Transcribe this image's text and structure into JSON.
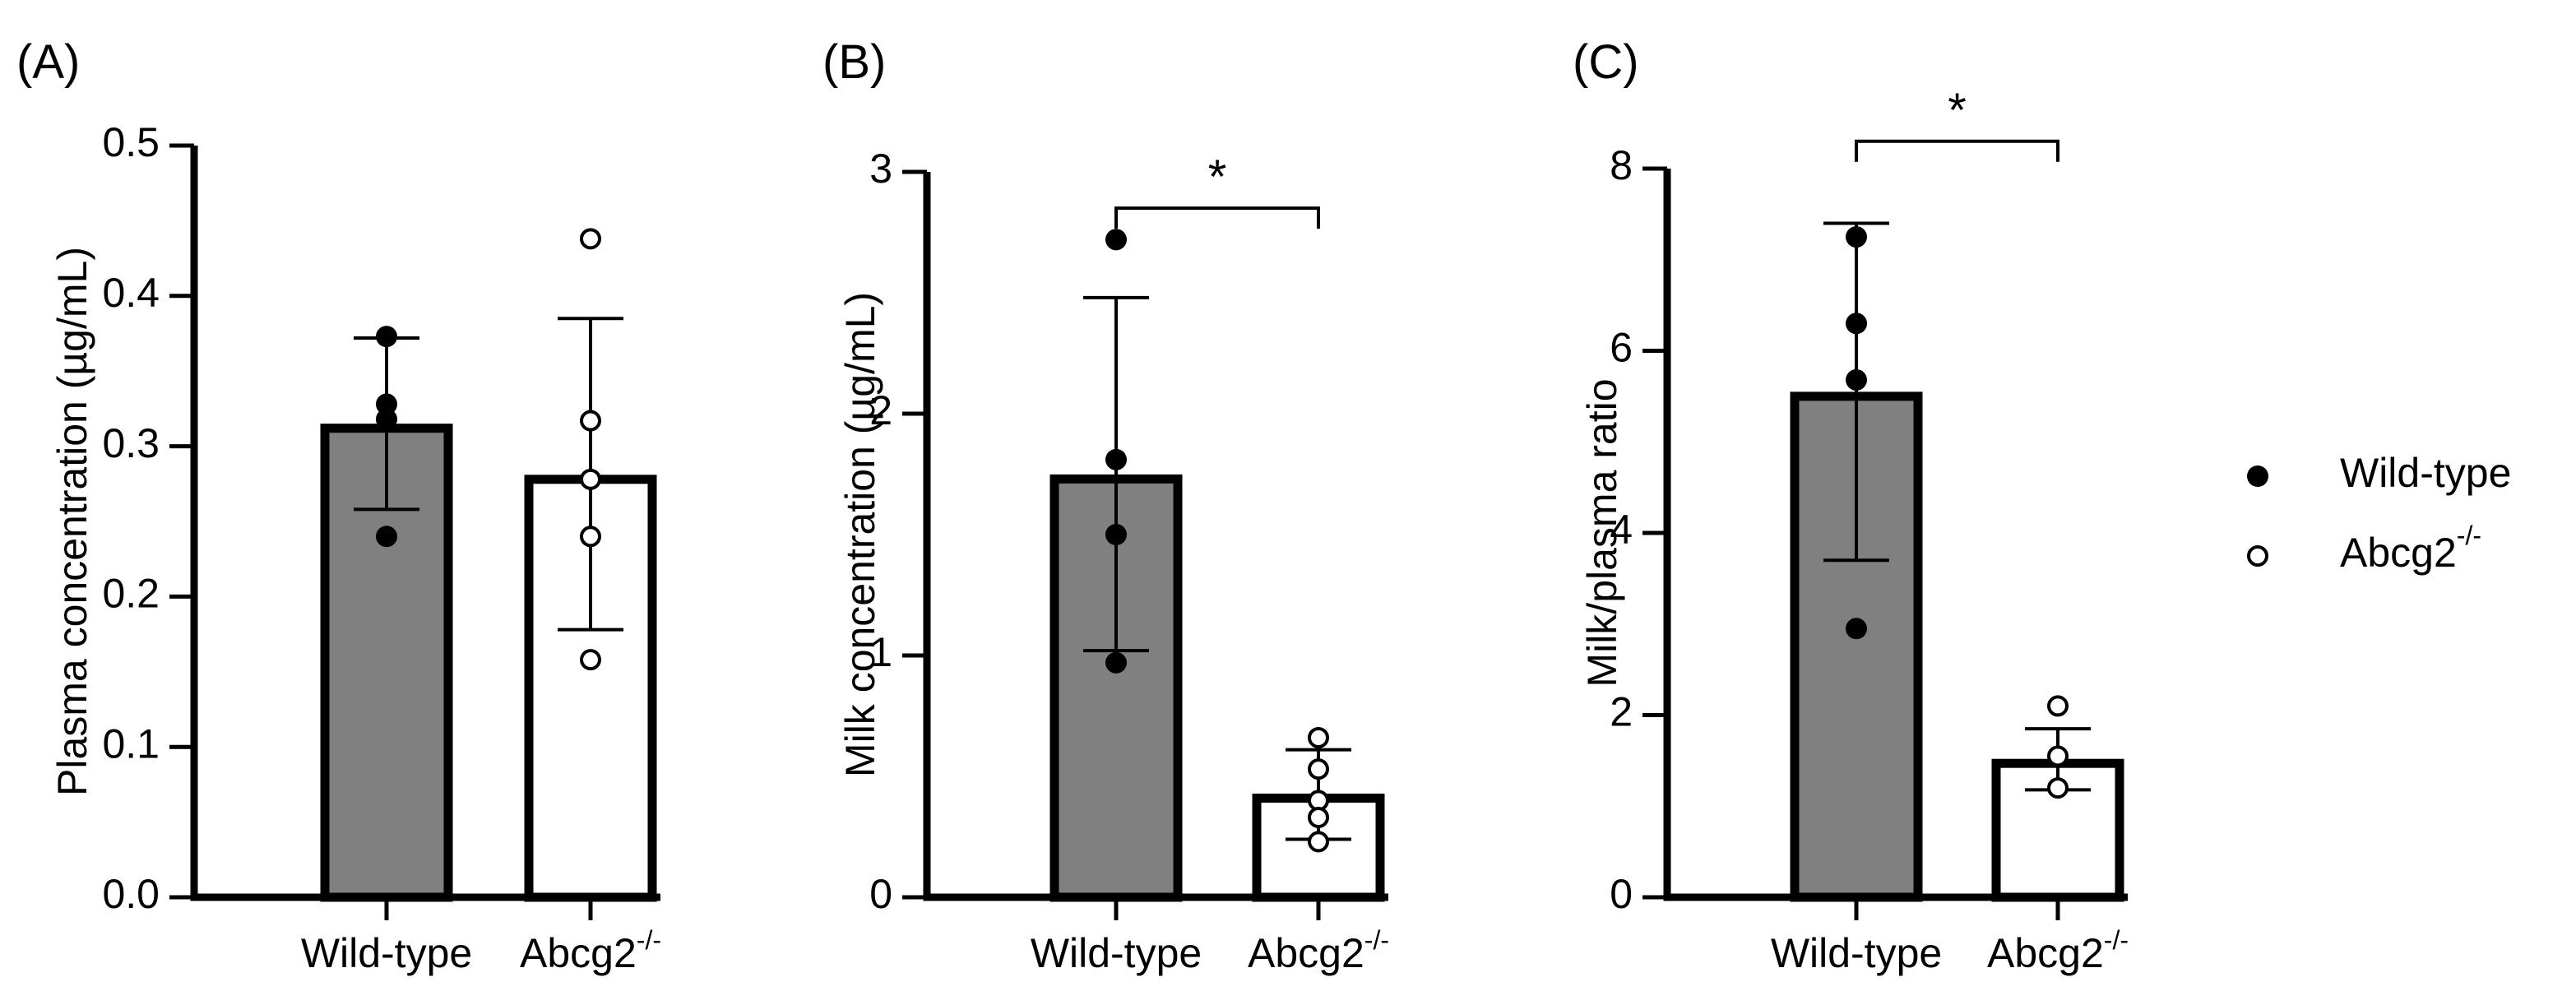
{
  "legend": {
    "position": "right",
    "items": [
      {
        "label": "Wild-type",
        "marker": "filled-circle"
      },
      {
        "label": "Abcg2",
        "sup": "-/-",
        "marker": "open-circle"
      }
    ]
  },
  "colors": {
    "wild_type_bar": "#808080",
    "abcg2_bar": "#ffffff",
    "ink": "#000000"
  },
  "chart_data": [
    {
      "type": "bar",
      "panel_label": "(A)",
      "ylabel": "Plasma concentration (µg/mL)",
      "ylim": [
        0,
        0.5
      ],
      "yticks": [
        0.0,
        0.1,
        0.2,
        0.3,
        0.4,
        0.5
      ],
      "ytick_labels": [
        "0.0",
        "0.1",
        "0.2",
        "0.3",
        "0.4",
        "0.5"
      ],
      "categories": [
        {
          "label": "Wild-type",
          "sup": ""
        },
        {
          "label": "Abcg2",
          "sup": "-/-"
        }
      ],
      "series": [
        {
          "name": "Wild-type",
          "mean": 0.312,
          "sd_low": 0.258,
          "sd_high": 0.372,
          "points": [
            0.373,
            0.328,
            0.318,
            0.24
          ],
          "fill": "#808080",
          "marker": "filled"
        },
        {
          "name": "Abcg2-/-",
          "mean": 0.278,
          "sd_low": 0.178,
          "sd_high": 0.385,
          "points": [
            0.438,
            0.317,
            0.278,
            0.24,
            0.158
          ],
          "fill": "#ffffff",
          "marker": "open"
        }
      ],
      "significance": null
    },
    {
      "type": "bar",
      "panel_label": "(B)",
      "ylabel": "Milk concentration  (µg/mL)",
      "ylim": [
        0,
        3
      ],
      "yticks": [
        0,
        1,
        2,
        3
      ],
      "ytick_labels": [
        "0",
        "1",
        "2",
        "3"
      ],
      "categories": [
        {
          "label": "Wild-type",
          "sup": ""
        },
        {
          "label": "Abcg2",
          "sup": "-/-"
        }
      ],
      "series": [
        {
          "name": "Wild-type",
          "mean": 1.73,
          "sd_low": 1.02,
          "sd_high": 2.48,
          "points": [
            2.72,
            1.81,
            1.5,
            0.97
          ],
          "fill": "#808080",
          "marker": "filled"
        },
        {
          "name": "Abcg2-/-",
          "mean": 0.41,
          "sd_low": 0.24,
          "sd_high": 0.61,
          "points": [
            0.66,
            0.53,
            0.4,
            0.33,
            0.23
          ],
          "fill": "#ffffff",
          "marker": "open"
        }
      ],
      "significance": {
        "label": "*",
        "y": 2.85
      }
    },
    {
      "type": "bar",
      "panel_label": "(C)",
      "ylabel": "Milk/plasma ratio",
      "ylim": [
        0,
        8
      ],
      "yticks": [
        0,
        2,
        4,
        6,
        8
      ],
      "ytick_labels": [
        "0",
        "2",
        "4",
        "6",
        "8"
      ],
      "categories": [
        {
          "label": "Wild-type",
          "sup": ""
        },
        {
          "label": "Abcg2",
          "sup": "-/-"
        }
      ],
      "series": [
        {
          "name": "Wild-type",
          "mean": 5.5,
          "sd_low": 3.7,
          "sd_high": 7.4,
          "points": [
            7.25,
            6.3,
            5.68,
            2.95
          ],
          "fill": "#808080",
          "marker": "filled"
        },
        {
          "name": "Abcg2-/-",
          "mean": 1.47,
          "sd_low": 1.18,
          "sd_high": 1.85,
          "points": [
            2.1,
            1.55,
            1.2
          ],
          "fill": "#ffffff",
          "marker": "open"
        }
      ],
      "significance": {
        "label": "*",
        "y": 8.3
      }
    }
  ]
}
